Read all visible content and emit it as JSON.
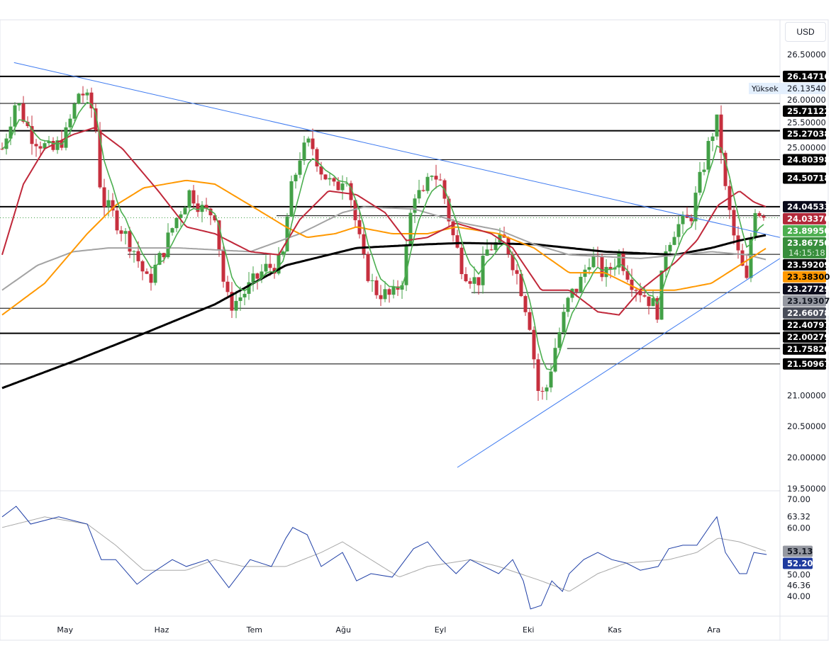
{
  "currency_button": "USD",
  "chart_data": {
    "type": "candlestick",
    "title": "",
    "x_unit": "trading day index",
    "time_axis": {
      "labels": [
        "May",
        "Haz",
        "Tem",
        "Ağu",
        "Eyl",
        "Eki",
        "Kas",
        "Ara"
      ],
      "positions": [
        15.3,
        38,
        59.8,
        80.7,
        103.5,
        124.2,
        144.5,
        167.8
      ]
    },
    "price_axis": {
      "ylim": [
        19.5,
        27.0
      ],
      "ticks": [
        "26.50000",
        "26.00000",
        "25.50000",
        "25.00000",
        "21.00000",
        "20.50000",
        "20.00000",
        "19.50000"
      ],
      "tick_values": [
        26.5,
        26.0,
        25.5,
        25.0,
        21.0,
        20.5,
        20.0,
        19.5
      ]
    },
    "candle_count": 180,
    "close_path": [
      [
        0,
        24.98
      ],
      [
        3.3,
        25.78
      ],
      [
        6.7,
        25.21
      ],
      [
        11.7,
        24.92
      ],
      [
        15,
        25.21
      ],
      [
        18.3,
        25.95
      ],
      [
        21.7,
        25.55
      ],
      [
        23.3,
        24.18
      ],
      [
        26.7,
        23.84
      ],
      [
        30.8,
        23.38
      ],
      [
        34.2,
        22.81
      ],
      [
        37.5,
        23.27
      ],
      [
        40.8,
        23.84
      ],
      [
        44.2,
        24.3
      ],
      [
        47.5,
        23.95
      ],
      [
        50,
        23.95
      ],
      [
        52.5,
        22.58
      ],
      [
        54.2,
        22.47
      ],
      [
        57.5,
        22.7
      ],
      [
        61.7,
        23.04
      ],
      [
        65.8,
        23.15
      ],
      [
        67.5,
        24.18
      ],
      [
        70,
        24.87
      ],
      [
        72.5,
        25.09
      ],
      [
        75,
        24.64
      ],
      [
        78.3,
        24.3
      ],
      [
        80.8,
        24.64
      ],
      [
        83.3,
        23.72
      ],
      [
        85,
        23.15
      ],
      [
        87.5,
        22.7
      ],
      [
        91.7,
        22.58
      ],
      [
        94.2,
        22.92
      ],
      [
        96.7,
        24.3
      ],
      [
        99.2,
        24.18
      ],
      [
        100.8,
        24.64
      ],
      [
        103.3,
        24.41
      ],
      [
        105.8,
        23.61
      ],
      [
        108.3,
        23.04
      ],
      [
        111.7,
        22.81
      ],
      [
        114.2,
        23.38
      ],
      [
        118.3,
        23.5
      ],
      [
        121.7,
        22.81
      ],
      [
        124.2,
        22.12
      ],
      [
        125.8,
        21.1
      ],
      [
        127.5,
        20.98
      ],
      [
        130,
        21.78
      ],
      [
        133.3,
        22.58
      ],
      [
        135.8,
        22.81
      ],
      [
        138.3,
        23.27
      ],
      [
        141.7,
        22.92
      ],
      [
        145,
        23.27
      ],
      [
        148.3,
        22.81
      ],
      [
        151.7,
        22.58
      ],
      [
        154.2,
        22.35
      ],
      [
        155.8,
        23.38
      ],
      [
        158.3,
        23.72
      ],
      [
        161.7,
        23.84
      ],
      [
        164.2,
        24.52
      ],
      [
        166.7,
        25.21
      ],
      [
        168.3,
        25.44
      ],
      [
        170,
        24.3
      ],
      [
        172.5,
        23.38
      ],
      [
        175,
        22.81
      ],
      [
        176.7,
        24.07
      ],
      [
        178.3,
        23.95
      ],
      [
        179.7,
        23.87
      ]
    ],
    "moving_averages": [
      {
        "name": "MA200",
        "color": "#000000",
        "width": 3,
        "points": [
          [
            0,
            21.12
          ],
          [
            16.7,
            21.55
          ],
          [
            33.3,
            22.0
          ],
          [
            50,
            22.47
          ],
          [
            66.7,
            23.1
          ],
          [
            83.3,
            23.38
          ],
          [
            100,
            23.44
          ],
          [
            108.3,
            23.46
          ],
          [
            125,
            23.44
          ],
          [
            141.7,
            23.32
          ],
          [
            158.3,
            23.27
          ],
          [
            166.7,
            23.38
          ],
          [
            173.3,
            23.5
          ],
          [
            179.7,
            23.59
          ]
        ]
      },
      {
        "name": "MA100",
        "color": "#a3a3a3",
        "width": 2,
        "points": [
          [
            0,
            22.7
          ],
          [
            8.3,
            23.1
          ],
          [
            16.7,
            23.32
          ],
          [
            25,
            23.38
          ],
          [
            41.7,
            23.38
          ],
          [
            58.3,
            23.32
          ],
          [
            70,
            23.61
          ],
          [
            80,
            23.95
          ],
          [
            85,
            24.04
          ],
          [
            96.7,
            24.01
          ],
          [
            108.3,
            23.78
          ],
          [
            116.7,
            23.67
          ],
          [
            125,
            23.44
          ],
          [
            133.3,
            23.27
          ],
          [
            150,
            23.21
          ],
          [
            166.7,
            23.32
          ],
          [
            175,
            23.27
          ],
          [
            179.7,
            23.19
          ]
        ]
      },
      {
        "name": "MA50",
        "color": "#ff9800",
        "width": 2,
        "points": [
          [
            0,
            22.3
          ],
          [
            10,
            22.81
          ],
          [
            20,
            23.61
          ],
          [
            26.7,
            24.07
          ],
          [
            33.3,
            24.35
          ],
          [
            43.3,
            24.47
          ],
          [
            50,
            24.41
          ],
          [
            58.3,
            24.07
          ],
          [
            66.7,
            23.72
          ],
          [
            71.7,
            23.55
          ],
          [
            78.3,
            23.61
          ],
          [
            83.3,
            23.72
          ],
          [
            91.7,
            23.61
          ],
          [
            100,
            23.61
          ],
          [
            106.7,
            23.72
          ],
          [
            116.7,
            23.61
          ],
          [
            125,
            23.38
          ],
          [
            133.3,
            22.98
          ],
          [
            141.7,
            22.98
          ],
          [
            150,
            22.7
          ],
          [
            158.3,
            22.7
          ],
          [
            166.7,
            22.81
          ],
          [
            173.3,
            23.1
          ],
          [
            179.7,
            23.38
          ]
        ]
      },
      {
        "name": "MA20",
        "color": "#c0283a",
        "width": 2,
        "points": [
          [
            0,
            23.27
          ],
          [
            5,
            24.41
          ],
          [
            10,
            24.98
          ],
          [
            16.7,
            25.21
          ],
          [
            21.7,
            25.32
          ],
          [
            28.3,
            24.98
          ],
          [
            36.7,
            24.3
          ],
          [
            43.3,
            23.72
          ],
          [
            50,
            23.61
          ],
          [
            58.3,
            23.32
          ],
          [
            65,
            23.27
          ],
          [
            70,
            23.84
          ],
          [
            76.7,
            24.3
          ],
          [
            83.3,
            24.24
          ],
          [
            90,
            23.95
          ],
          [
            95,
            23.5
          ],
          [
            100,
            23.55
          ],
          [
            106.7,
            23.78
          ],
          [
            115,
            23.61
          ],
          [
            120,
            23.38
          ],
          [
            126.7,
            22.7
          ],
          [
            133.3,
            22.7
          ],
          [
            140,
            22.35
          ],
          [
            145,
            22.3
          ],
          [
            150,
            22.7
          ],
          [
            158.3,
            23.15
          ],
          [
            163.3,
            23.5
          ],
          [
            168.3,
            24.07
          ],
          [
            173.3,
            24.3
          ],
          [
            176.7,
            24.12
          ],
          [
            179.7,
            24.04
          ]
        ]
      }
    ],
    "ema5_color": "#4caf50",
    "trendlines": [
      {
        "name": "descending",
        "color": "#3f7bf0",
        "from": [
          3.3,
          26.37
        ],
        "to": [
          183.3,
          23.55
        ]
      },
      {
        "name": "ascending",
        "color": "#3f7bf0",
        "from": [
          107.5,
          19.84
        ],
        "to": [
          183.3,
          23.21
        ]
      }
    ],
    "horizontal_levels": [
      {
        "value": "26.14716",
        "start": 0,
        "width": 2
      },
      {
        "value": "25.71122",
        "start": 0,
        "width": 1
      },
      {
        "value": "25.27038",
        "start": 0,
        "width": 2
      },
      {
        "value": "24.80398",
        "start": 0,
        "width": 1
      },
      {
        "value": "24.50718",
        "start": null,
        "width": 1
      },
      {
        "value": "24.04533",
        "start": 0,
        "width": 2
      },
      {
        "value": "23.89950",
        "start": 65,
        "width": 1
      },
      {
        "value": "23.27729",
        "start": 30,
        "width": 1
      },
      {
        "value": "22.66078",
        "start": 110.8,
        "width": 1
      },
      {
        "value": "22.40797",
        "start": 0,
        "width": 1
      },
      {
        "value": "22.00279",
        "start": 0,
        "width": 2
      },
      {
        "value": "21.75820",
        "start": 133.3,
        "width": 1
      },
      {
        "value": "21.50967",
        "start": 0,
        "width": 1
      }
    ],
    "price_labels": [
      {
        "text": "26.14716",
        "bg": "#000000",
        "fg": "#ffffff"
      },
      {
        "text": "25.71122",
        "bg": "#000000",
        "fg": "#ffffff"
      },
      {
        "text": "25.27038",
        "bg": "#000000",
        "fg": "#ffffff"
      },
      {
        "text": "24.80398",
        "bg": "#000000",
        "fg": "#ffffff"
      },
      {
        "text": "24.50718",
        "bg": "#000000",
        "fg": "#ffffff"
      },
      {
        "text": "24.04533",
        "bg": "#0a0a1a",
        "fg": "#ffffff"
      },
      {
        "text": "24.03370",
        "bg": "#b2283a",
        "fg": "#ffffff"
      },
      {
        "text": "23.89950",
        "bg": "#4caf50",
        "fg": "#ffffff"
      },
      {
        "text": "23.59209",
        "bg": "#000000",
        "fg": "#ffffff"
      },
      {
        "text": "23.38300",
        "bg": "#ff9800",
        "fg": "#000000"
      },
      {
        "text": "23.27729",
        "bg": "#0a0a1a",
        "fg": "#ffffff"
      },
      {
        "text": "23.19307",
        "bg": "#9598a1",
        "fg": "#131722"
      },
      {
        "text": "22.66078",
        "bg": "#4a4e5a",
        "fg": "#ffffff"
      },
      {
        "text": "22.40797",
        "bg": "#000000",
        "fg": "#ffffff"
      },
      {
        "text": "22.00279",
        "bg": "#000000",
        "fg": "#ffffff"
      },
      {
        "text": "21.75820",
        "bg": "#000000",
        "fg": "#ffffff"
      },
      {
        "text": "21.50967",
        "bg": "#000000",
        "fg": "#ffffff"
      }
    ],
    "last_price": {
      "value": "23.86750",
      "countdown": "14:15:18",
      "bg": "#388e3c"
    },
    "high_marker": {
      "label": "Yüksek",
      "value": "26.13540"
    },
    "candle_colors": {
      "up": "#43a047",
      "down": "#c62f3e"
    },
    "rsi": {
      "ylim": [
        30,
        72
      ],
      "ticks": [
        "70.00",
        "63.32",
        "60.00",
        "50.00",
        "46.36",
        "40.00"
      ],
      "tick_values": [
        70,
        63.32,
        60,
        50,
        46.36,
        40
      ],
      "line_color": "#1f3fa6",
      "ma_color": "#a8a8a8",
      "last_rsi": {
        "value": "52.20",
        "bg": "#1e3a9e"
      },
      "last_ma": {
        "value": "53.13",
        "bg": "#9598a1"
      },
      "rsi_points": [
        [
          0,
          63.2
        ],
        [
          3.3,
          66.3
        ],
        [
          6.7,
          61.1
        ],
        [
          13.3,
          63.2
        ],
        [
          20,
          61.1
        ],
        [
          23.3,
          50.7
        ],
        [
          26.7,
          50.7
        ],
        [
          31.7,
          43.5
        ],
        [
          35,
          46.6
        ],
        [
          40,
          50.7
        ],
        [
          43.3,
          48.7
        ],
        [
          48.3,
          50.7
        ],
        [
          53.3,
          42.5
        ],
        [
          58.3,
          50.7
        ],
        [
          63.3,
          48.7
        ],
        [
          66.7,
          57
        ],
        [
          68.3,
          60.1
        ],
        [
          71.7,
          58
        ],
        [
          75,
          48.7
        ],
        [
          80,
          52.8
        ],
        [
          81.7,
          48.7
        ],
        [
          83.3,
          44.5
        ],
        [
          86.7,
          46.6
        ],
        [
          91.7,
          45.6
        ],
        [
          96.7,
          53.9
        ],
        [
          100,
          55.9
        ],
        [
          103.3,
          50.7
        ],
        [
          106.7,
          46.6
        ],
        [
          110,
          50.7
        ],
        [
          116.7,
          46.6
        ],
        [
          120,
          50.7
        ],
        [
          122.5,
          44.5
        ],
        [
          124.2,
          36.3
        ],
        [
          126.7,
          37.3
        ],
        [
          129.2,
          44.5
        ],
        [
          131.7,
          41.4
        ],
        [
          133.3,
          46.6
        ],
        [
          136.7,
          50.7
        ],
        [
          140,
          52.8
        ],
        [
          143.3,
          50.7
        ],
        [
          146.7,
          49.7
        ],
        [
          150,
          47.6
        ],
        [
          154.2,
          48.7
        ],
        [
          156.7,
          53.9
        ],
        [
          160,
          54.9
        ],
        [
          163.3,
          54.9
        ],
        [
          166.7,
          61.1
        ],
        [
          168,
          63.2
        ],
        [
          170,
          52.8
        ],
        [
          173.3,
          46.6
        ],
        [
          175,
          46.6
        ],
        [
          176.7,
          52.8
        ],
        [
          179.7,
          52.2
        ]
      ],
      "ma_points": [
        [
          0,
          60.1
        ],
        [
          10,
          63.2
        ],
        [
          20,
          61.1
        ],
        [
          26.7,
          54.9
        ],
        [
          33.3,
          47.6
        ],
        [
          43.3,
          47.6
        ],
        [
          50,
          50.7
        ],
        [
          56.7,
          48.7
        ],
        [
          66.7,
          48.7
        ],
        [
          75,
          52.8
        ],
        [
          80,
          55.9
        ],
        [
          86.7,
          50.7
        ],
        [
          93.3,
          45.6
        ],
        [
          100,
          48.7
        ],
        [
          110,
          50.7
        ],
        [
          116.7,
          48.7
        ],
        [
          126.7,
          44.5
        ],
        [
          133.3,
          41.4
        ],
        [
          140,
          46.6
        ],
        [
          146.7,
          49.7
        ],
        [
          156.7,
          50.7
        ],
        [
          163.3,
          52.8
        ],
        [
          168.3,
          57
        ],
        [
          173.3,
          55.9
        ],
        [
          179.7,
          53.1
        ]
      ]
    }
  }
}
